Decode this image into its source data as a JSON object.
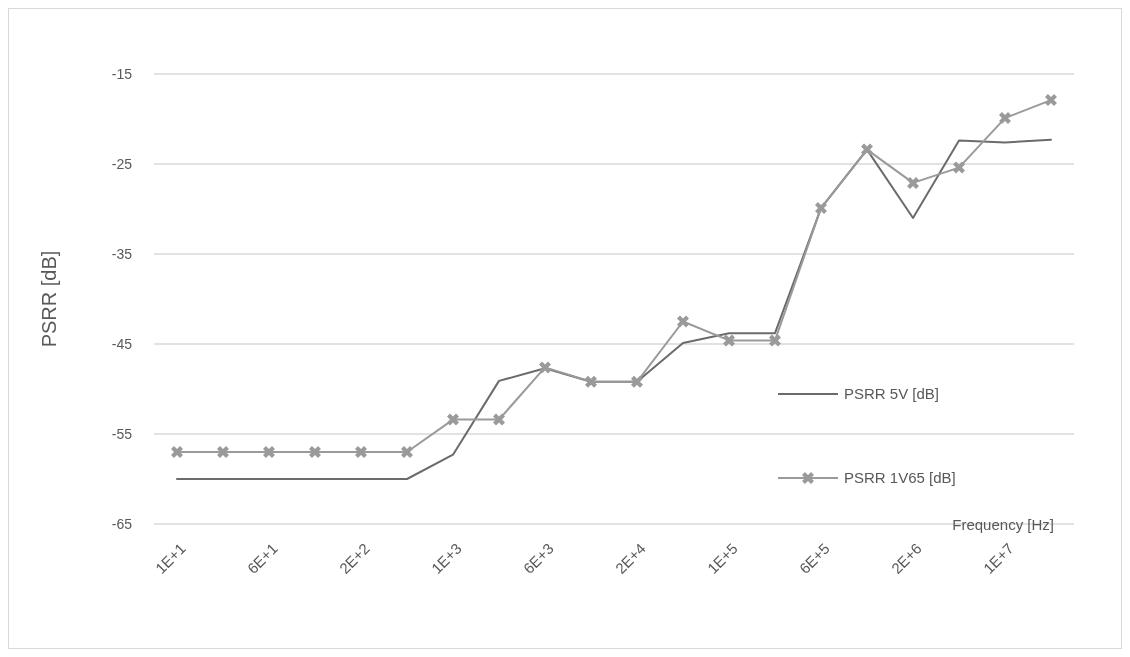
{
  "chart_data": {
    "type": "line",
    "xlabel": "Frequency [Hz]",
    "ylabel": "PSRR [dB]",
    "categories": [
      "1E+1",
      null,
      "6E+1",
      null,
      "2E+2",
      null,
      "1E+3",
      null,
      "6E+3",
      null,
      "2E+4",
      null,
      "1E+5",
      null,
      "6E+5",
      null,
      "2E+6",
      null,
      "1E+7",
      null
    ],
    "ylim": [
      -65,
      -15
    ],
    "yticks": [
      -15,
      -25,
      -35,
      -45,
      -55,
      -65
    ],
    "grid": "y",
    "legend": "right",
    "line_style": "solid",
    "series": [
      {
        "name": "PSRR 5V [dB]",
        "color": "#6b6b6b",
        "marker": "none",
        "values": [
          -60,
          -60,
          -60,
          -60,
          -60,
          -60,
          -57.3,
          -49.1,
          -47.7,
          -49.2,
          -49.2,
          -44.9,
          -43.8,
          -43.8,
          -29.9,
          -23.4,
          -31,
          -22.4,
          -22.6,
          -22.3
        ]
      },
      {
        "name": "PSRR 1V65 [dB]",
        "color": "#9a9a9a",
        "marker": "cross",
        "values": [
          -57,
          -57,
          -57,
          -57,
          -57,
          -57,
          -53.4,
          -53.4,
          -47.6,
          -49.2,
          -49.2,
          -42.5,
          -44.6,
          -44.6,
          -29.9,
          -23.4,
          -27.1,
          -25.4,
          -19.9,
          -17.9
        ]
      }
    ]
  }
}
